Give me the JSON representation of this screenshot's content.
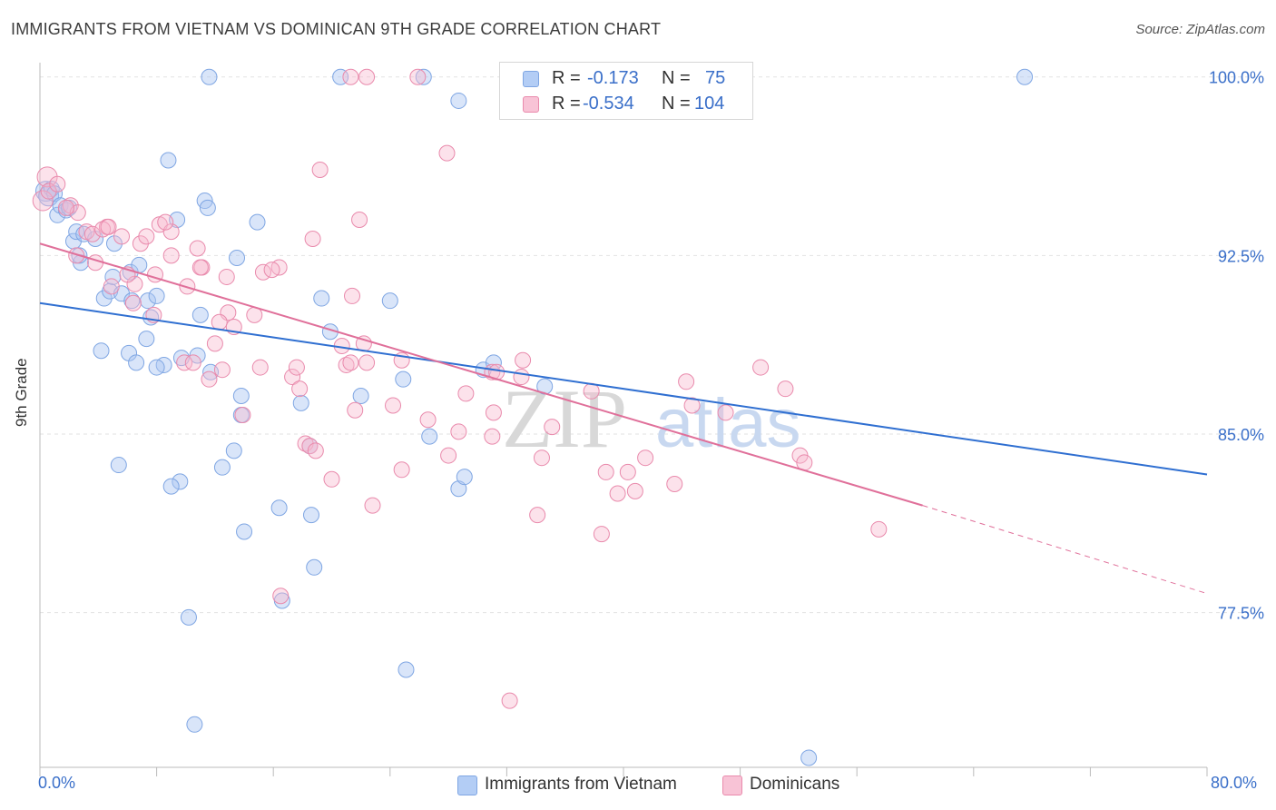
{
  "title": "IMMIGRANTS FROM VIETNAM VS DOMINICAN 9TH GRADE CORRELATION CHART",
  "source_label": "Source: ZipAtlas.com",
  "stats": [
    {
      "r_label": "R =",
      "r_value": "-0.173",
      "n_label": "N =",
      "n_value": "75",
      "color": "#b3cdf5"
    },
    {
      "r_label": "R =",
      "r_value": "-0.534",
      "n_label": "N =",
      "n_value": "104",
      "color": "#f8c3d6"
    }
  ],
  "legend": [
    {
      "label": "Immigrants from Vietnam",
      "color": "#b3cdf5"
    },
    {
      "label": "Dominicans",
      "color": "#f8c3d6"
    }
  ],
  "watermark": {
    "part1": "ZIP",
    "part2": "atlas"
  },
  "chart_data": {
    "type": "scatter",
    "title": "IMMIGRANTS FROM VIETNAM VS DOMINICAN 9TH GRADE CORRELATION CHART",
    "xlabel": "",
    "ylabel": "9th Grade",
    "xlim": [
      0,
      80
    ],
    "ylim": [
      71.0,
      100.6
    ],
    "x_tick_labels": [
      "0.0%",
      "80.0%"
    ],
    "y_ticks": [
      77.5,
      85.0,
      92.5,
      100.0
    ],
    "y_tick_labels": [
      "77.5%",
      "85.0%",
      "92.5%",
      "100.0%"
    ],
    "grid": "horizontal dashed",
    "legend_position": "bottom-center",
    "series": [
      {
        "name": "Immigrants from Vietnam",
        "color": "#7fa6e3",
        "trend": {
          "x": [
            0,
            80
          ],
          "y": [
            90.5,
            83.3
          ]
        },
        "points": [
          [
            0.4,
            95.2
          ],
          [
            0.6,
            95.0
          ],
          [
            0.8,
            95.3
          ],
          [
            1.0,
            95.1
          ],
          [
            1.2,
            94.2
          ],
          [
            1.4,
            94.6
          ],
          [
            1.8,
            94.4
          ],
          [
            2.0,
            94.5
          ],
          [
            2.3,
            93.1
          ],
          [
            2.5,
            93.5
          ],
          [
            2.8,
            92.2
          ],
          [
            3.0,
            93.4
          ],
          [
            3.8,
            93.2
          ],
          [
            2.7,
            92.5
          ],
          [
            5.1,
            93.0
          ],
          [
            4.4,
            90.7
          ],
          [
            4.8,
            91.0
          ],
          [
            5.0,
            91.6
          ],
          [
            5.6,
            90.9
          ],
          [
            6.2,
            91.8
          ],
          [
            6.3,
            90.6
          ],
          [
            6.8,
            92.1
          ],
          [
            7.4,
            90.6
          ],
          [
            8.0,
            90.8
          ],
          [
            7.6,
            89.9
          ],
          [
            7.3,
            89.0
          ],
          [
            4.2,
            88.5
          ],
          [
            6.1,
            88.4
          ],
          [
            6.6,
            88.0
          ],
          [
            8.5,
            87.9
          ],
          [
            8.0,
            87.8
          ],
          [
            9.7,
            88.2
          ],
          [
            10.8,
            88.3
          ],
          [
            11.7,
            87.6
          ],
          [
            8.8,
            96.5
          ],
          [
            11.3,
            94.8
          ],
          [
            11.5,
            94.5
          ],
          [
            14.9,
            93.9
          ],
          [
            13.5,
            92.4
          ],
          [
            11.0,
            90.0
          ],
          [
            11.6,
            100.0
          ],
          [
            20.6,
            100.0
          ],
          [
            26.3,
            100.0
          ],
          [
            28.7,
            99.0
          ],
          [
            67.5,
            100.0
          ],
          [
            9.4,
            94.0
          ],
          [
            19.3,
            90.7
          ],
          [
            24.0,
            90.6
          ],
          [
            19.9,
            89.3
          ],
          [
            30.4,
            87.7
          ],
          [
            31.1,
            88.0
          ],
          [
            22.0,
            86.6
          ],
          [
            24.9,
            87.3
          ],
          [
            34.6,
            87.0
          ],
          [
            13.8,
            86.6
          ],
          [
            13.8,
            85.8
          ],
          [
            17.9,
            86.3
          ],
          [
            26.7,
            84.9
          ],
          [
            18.5,
            84.5
          ],
          [
            13.3,
            84.3
          ],
          [
            5.4,
            83.7
          ],
          [
            12.5,
            83.6
          ],
          [
            9.6,
            83.0
          ],
          [
            9.0,
            82.8
          ],
          [
            28.7,
            82.7
          ],
          [
            29.1,
            83.2
          ],
          [
            16.4,
            81.9
          ],
          [
            18.6,
            81.6
          ],
          [
            14.0,
            80.9
          ],
          [
            18.8,
            79.4
          ],
          [
            16.6,
            78.0
          ],
          [
            10.2,
            77.3
          ],
          [
            25.1,
            75.1
          ],
          [
            10.6,
            72.8
          ],
          [
            52.7,
            71.4
          ]
        ]
      },
      {
        "name": "Dominicans",
        "color": "#e98aac",
        "trend": {
          "x": [
            0,
            60.5
          ],
          "y": [
            93.0,
            82.0
          ]
        },
        "trend_extension": {
          "x": [
            60.5,
            80
          ],
          "y": [
            82.0,
            78.3
          ]
        },
        "points": [
          [
            0.2,
            94.8
          ],
          [
            0.5,
            95.8
          ],
          [
            0.6,
            95.2
          ],
          [
            1.2,
            95.5
          ],
          [
            2.1,
            94.6
          ],
          [
            2.6,
            94.3
          ],
          [
            3.2,
            93.5
          ],
          [
            3.6,
            93.4
          ],
          [
            4.6,
            93.7
          ],
          [
            4.3,
            93.6
          ],
          [
            5.6,
            93.3
          ],
          [
            6.9,
            93.0
          ],
          [
            7.3,
            93.3
          ],
          [
            8.2,
            93.8
          ],
          [
            9.0,
            93.5
          ],
          [
            9.0,
            92.5
          ],
          [
            10.8,
            92.8
          ],
          [
            11.1,
            92.0
          ],
          [
            7.9,
            91.7
          ],
          [
            6.5,
            91.3
          ],
          [
            6.0,
            91.7
          ],
          [
            10.1,
            91.2
          ],
          [
            12.8,
            91.6
          ],
          [
            15.3,
            91.8
          ],
          [
            16.4,
            92.0
          ],
          [
            15.9,
            91.9
          ],
          [
            18.7,
            93.2
          ],
          [
            19.2,
            96.1
          ],
          [
            21.9,
            94.0
          ],
          [
            27.9,
            96.8
          ],
          [
            21.3,
            100.0
          ],
          [
            22.4,
            100.0
          ],
          [
            25.9,
            100.0
          ],
          [
            32.8,
            100.0
          ],
          [
            37.3,
            100.0
          ],
          [
            12.9,
            90.1
          ],
          [
            14.7,
            90.0
          ],
          [
            12.3,
            89.7
          ],
          [
            13.3,
            89.5
          ],
          [
            6.4,
            90.5
          ],
          [
            7.8,
            90.0
          ],
          [
            12.0,
            88.8
          ],
          [
            9.9,
            88.0
          ],
          [
            10.5,
            88.0
          ],
          [
            11.6,
            87.3
          ],
          [
            12.5,
            87.7
          ],
          [
            15.1,
            87.8
          ],
          [
            17.3,
            87.4
          ],
          [
            17.6,
            87.8
          ],
          [
            20.7,
            88.7
          ],
          [
            21.0,
            87.9
          ],
          [
            21.4,
            90.8
          ],
          [
            21.3,
            88.0
          ],
          [
            22.4,
            88.0
          ],
          [
            22.2,
            88.8
          ],
          [
            24.8,
            88.1
          ],
          [
            17.8,
            86.9
          ],
          [
            21.6,
            86.0
          ],
          [
            13.9,
            85.8
          ],
          [
            24.2,
            86.2
          ],
          [
            26.6,
            85.6
          ],
          [
            28.7,
            85.1
          ],
          [
            29.2,
            86.7
          ],
          [
            31.0,
            84.9
          ],
          [
            31.1,
            85.9
          ],
          [
            31.0,
            87.6
          ],
          [
            33.1,
            88.1
          ],
          [
            33.0,
            87.4
          ],
          [
            31.3,
            87.6
          ],
          [
            18.2,
            84.6
          ],
          [
            18.5,
            84.5
          ],
          [
            18.9,
            84.3
          ],
          [
            20.0,
            83.1
          ],
          [
            24.8,
            83.5
          ],
          [
            28.0,
            84.1
          ],
          [
            34.4,
            84.0
          ],
          [
            35.1,
            85.3
          ],
          [
            34.1,
            81.6
          ],
          [
            22.8,
            82.0
          ],
          [
            37.8,
            86.8
          ],
          [
            38.8,
            83.4
          ],
          [
            39.6,
            82.5
          ],
          [
            40.3,
            83.4
          ],
          [
            40.8,
            82.6
          ],
          [
            38.5,
            80.8
          ],
          [
            41.5,
            84.0
          ],
          [
            43.5,
            82.9
          ],
          [
            44.3,
            87.2
          ],
          [
            44.7,
            86.2
          ],
          [
            47.0,
            85.9
          ],
          [
            49.4,
            87.8
          ],
          [
            51.1,
            86.9
          ],
          [
            52.1,
            84.1
          ],
          [
            52.4,
            83.8
          ],
          [
            57.5,
            81.0
          ],
          [
            16.5,
            78.2
          ],
          [
            32.2,
            73.8
          ],
          [
            11.0,
            92.0
          ],
          [
            4.9,
            91.2
          ],
          [
            3.8,
            92.2
          ],
          [
            4.7,
            93.7
          ],
          [
            8.6,
            93.9
          ],
          [
            2.5,
            92.5
          ],
          [
            1.8,
            94.5
          ]
        ]
      }
    ]
  }
}
